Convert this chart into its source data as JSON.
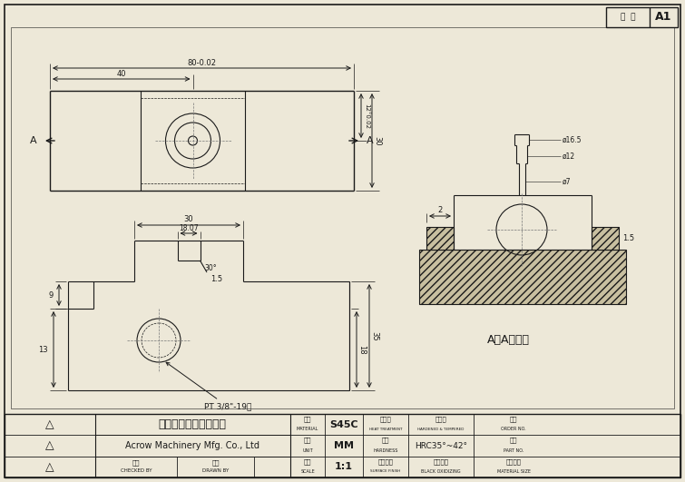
{
  "bg_color": "#ede8d8",
  "line_color": "#1a1a1a",
  "hatch_color": "#c8bfa0",
  "company_cn": "丸榮機械股份有限公司",
  "company_en": "Acrow Machinery Mfg. Co., Ltd",
  "section_label": "A－A剖視圖",
  "ver_label": "版  別",
  "ver_val": "A1",
  "mat_label": "材質",
  "mat_sub": "MATERIAL",
  "mat_val": "S45C",
  "heat_label": "熱處理",
  "heat_sub": "HEAT TREATMENT",
  "heat_val": "調　質",
  "heat_sub2": "HARDENED & TEMPERED",
  "order_label": "訂號",
  "order_sub": "ORDER NO.",
  "unit_label": "單位",
  "unit_sub": "UNIT",
  "unit_val": "MM",
  "hard_label": "硬度",
  "hard_sub": "HARDNESS",
  "hard_val": "HRC35°~42°",
  "part_label": "品名",
  "part_sub": "PART NO.",
  "check_label": "審核",
  "check_sub": "CHECKED BY",
  "draw_label": "繪圖",
  "draw_sub": "DRAWN BY",
  "scale_label": "比例",
  "scale_sub": "SCALE",
  "scale_val": "1:1",
  "surf_label": "表面處理",
  "surf_sub": "SURFACE FINISH",
  "surf_val": "表面設置",
  "surf_sub2": "BLACK OXIDIZING",
  "matsize_label": "材料尺寸",
  "matsize_sub": "MATERIAL SIZE",
  "dim_80": "80-0.02",
  "dim_40": "40",
  "dim_30r": "30",
  "dim_12": "12°0.02",
  "dim_30b": "30",
  "dim_1807": "18.07",
  "dim_9": "9",
  "dim_18": "18",
  "dim_35": "35",
  "dim_15a": "1.5",
  "dim_13": "13",
  "dim_30deg": "30°",
  "dim_pt": "PT 3/8\"-19牙",
  "dim_d165": "ø16.5",
  "dim_d12": "ø12",
  "dim_d7": "ø7",
  "dim_2": "2",
  "dim_15b": "1.5"
}
